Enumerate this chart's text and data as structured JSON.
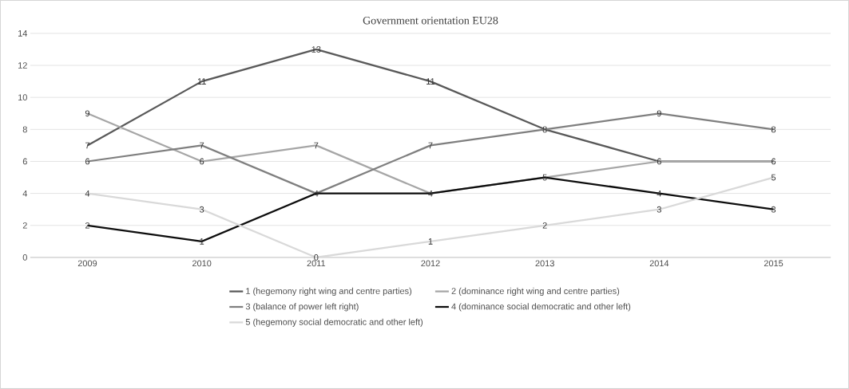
{
  "chart_data": {
    "type": "line",
    "title": "Government orientation EU28",
    "categories": [
      "2009",
      "2010",
      "2011",
      "2012",
      "2013",
      "2014",
      "2015"
    ],
    "series": [
      {
        "name": "1 (hegemony right wing and centre parties)",
        "color": "#595959",
        "values": [
          7,
          11,
          13,
          11,
          8,
          6,
          6
        ],
        "value_labels": [
          "7",
          "11",
          "13",
          "11",
          "8",
          "6",
          "6"
        ]
      },
      {
        "name": "2 (dominance right wing and centre parties)",
        "color": "#a6a6a6",
        "values": [
          9,
          6,
          7,
          4,
          5,
          6,
          6
        ],
        "value_labels": [
          "9",
          "6",
          "7",
          null,
          "5",
          null,
          null
        ]
      },
      {
        "name": "3 (balance of power left right)",
        "color": "#7f7f7f",
        "values": [
          6,
          7,
          4,
          7,
          8,
          9,
          8
        ],
        "value_labels": [
          "6",
          "7",
          null,
          "7",
          null,
          "9",
          "8"
        ]
      },
      {
        "name": "4 (dominance social democratic and other left)",
        "color": "#0d0d0d",
        "values": [
          2,
          1,
          4,
          4,
          5,
          4,
          3
        ],
        "value_labels": [
          "2",
          "1",
          "4",
          "4",
          null,
          "4",
          "3"
        ]
      },
      {
        "name": "5 (hegemony social democratic and other left)",
        "color": "#d9d9d9",
        "values": [
          4,
          3,
          0,
          1,
          2,
          3,
          5
        ],
        "value_labels": [
          "4",
          "3",
          "0",
          "1",
          "2",
          "3",
          "5"
        ]
      }
    ],
    "ylim": [
      0,
      14
    ],
    "yticks": [
      0,
      2,
      4,
      6,
      8,
      10,
      12,
      14
    ],
    "grid": "y",
    "legend": "bottom",
    "marker": "none",
    "line_style": "solid"
  }
}
